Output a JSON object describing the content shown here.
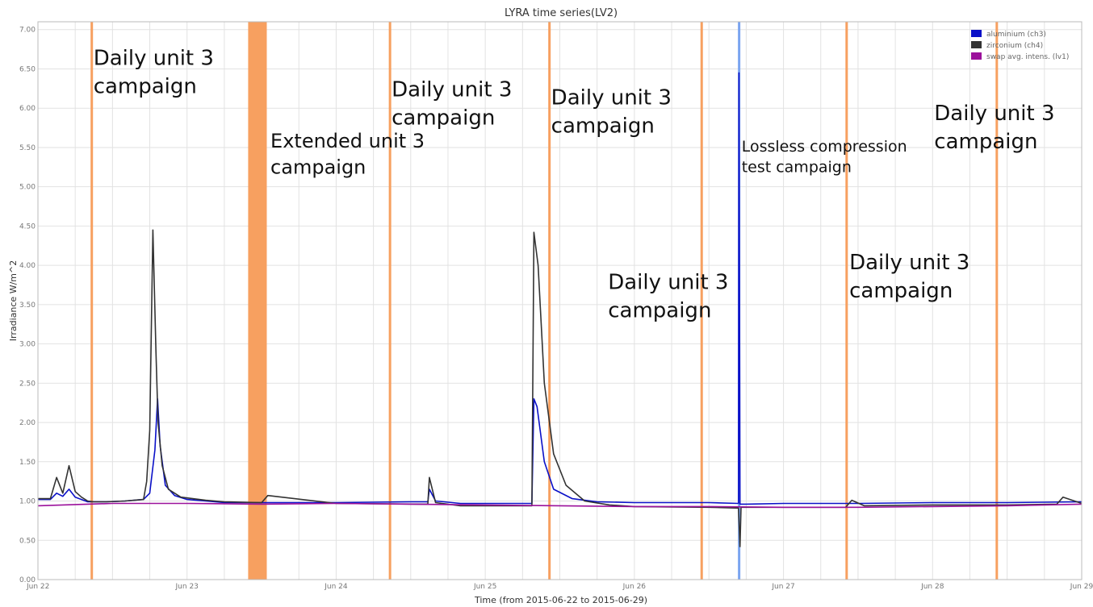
{
  "chart_data": {
    "type": "line",
    "title": "LYRA time series(LV2)",
    "xlabel": "Time (from 2015-06-22 to 2015-06-29)",
    "ylabel": "Irradiance W/m^2",
    "x_domain": [
      "2015-06-22",
      "2015-06-29"
    ],
    "ylim": [
      0,
      7.1
    ],
    "y_ticks": [
      "0.00",
      "0.50",
      "1.00",
      "1.50",
      "2.00",
      "2.50",
      "3.00",
      "3.50",
      "4.00",
      "4.50",
      "5.00",
      "5.50",
      "6.00",
      "6.50",
      "7.00"
    ],
    "x_ticks": [
      {
        "t": "2015-06-22",
        "label": "Jun 22"
      },
      {
        "t": "2015-06-23",
        "label": "Jun 23"
      },
      {
        "t": "2015-06-24",
        "label": "Jun 24"
      },
      {
        "t": "2015-06-25",
        "label": "Jun 25"
      },
      {
        "t": "2015-06-26",
        "label": "Jun 26"
      },
      {
        "t": "2015-06-27",
        "label": "Jun 27"
      },
      {
        "t": "2015-06-28",
        "label": "Jun 28"
      },
      {
        "t": "2015-06-29",
        "label": "Jun 29"
      }
    ],
    "grid": true,
    "legend_position": "top-right",
    "campaign_color": "#f7a060",
    "campaign_bands": [
      {
        "start": "2015-06-22T08:40",
        "end": "2015-06-22T08:40"
      },
      {
        "start": "2015-06-23T09:50",
        "end": "2015-06-23T12:50"
      },
      {
        "start": "2015-06-24T08:40",
        "end": "2015-06-24T08:40"
      },
      {
        "start": "2015-06-25T10:20",
        "end": "2015-06-25T10:20"
      },
      {
        "start": "2015-06-26T10:50",
        "end": "2015-06-26T10:50"
      },
      {
        "start": "2015-06-27T10:10",
        "end": "2015-06-27T10:10"
      },
      {
        "start": "2015-06-28T10:20",
        "end": "2015-06-28T10:20"
      }
    ],
    "highlight_band": {
      "start": "2015-06-26T16:40",
      "end": "2015-06-26T17:00",
      "color": "#7aa4f0"
    },
    "annotations": [
      {
        "lines": [
          "Daily unit 3",
          "campaign"
        ],
        "t": "2015-06-22T08:40",
        "y": 6.55,
        "size": 26
      },
      {
        "lines": [
          "Extended unit 3",
          "campaign"
        ],
        "t": "2015-06-23T13:10",
        "y": 5.5,
        "size": 24
      },
      {
        "lines": [
          "Daily unit 3",
          "campaign"
        ],
        "t": "2015-06-24T08:40",
        "y": 6.15,
        "size": 26
      },
      {
        "lines": [
          "Daily unit 3",
          "campaign"
        ],
        "t": "2015-06-25T10:20",
        "y": 6.05,
        "size": 26
      },
      {
        "lines": [
          "Daily unit 3",
          "campaign"
        ],
        "t": "2015-06-25T19:30",
        "y": 3.7,
        "size": 26
      },
      {
        "lines": [
          "Lossless compression",
          "test campaign"
        ],
        "t": "2015-06-26T17:00",
        "y": 5.45,
        "size": 19
      },
      {
        "lines": [
          "Daily unit 3",
          "campaign"
        ],
        "t": "2015-06-27T10:20",
        "y": 3.95,
        "size": 26
      },
      {
        "lines": [
          "Daily unit 3",
          "campaign"
        ],
        "t": "2015-06-28T00:00",
        "y": 5.85,
        "size": 26
      }
    ],
    "series": [
      {
        "name": "aluminium (ch3)",
        "color": "#0a10c8",
        "x": [
          "2015-06-22T00:00",
          "2015-06-22T02:00",
          "2015-06-22T03:00",
          "2015-06-22T04:00",
          "2015-06-22T05:00",
          "2015-06-22T06:00",
          "2015-06-22T07:00",
          "2015-06-22T08:00",
          "2015-06-22T09:00",
          "2015-06-22T11:00",
          "2015-06-22T14:00",
          "2015-06-22T17:00",
          "2015-06-22T18:00",
          "2015-06-22T18:50",
          "2015-06-22T19:15",
          "2015-06-22T19:40",
          "2015-06-22T20:30",
          "2015-06-22T22:00",
          "2015-06-23T00:00",
          "2015-06-23T03:00",
          "2015-06-23T06:00",
          "2015-06-23T12:00",
          "2015-06-24T00:00",
          "2015-06-24T12:00",
          "2015-06-24T14:45",
          "2015-06-24T15:00",
          "2015-06-24T16:00",
          "2015-06-24T20:00",
          "2015-06-25T04:00",
          "2015-06-25T07:30",
          "2015-06-25T07:50",
          "2015-06-25T08:20",
          "2015-06-25T09:30",
          "2015-06-25T11:00",
          "2015-06-25T14:00",
          "2015-06-25T18:00",
          "2015-06-26T00:00",
          "2015-06-26T12:00",
          "2015-06-26T16:45",
          "2015-06-26T16:50",
          "2015-06-26T17:00",
          "2015-06-26T18:00",
          "2015-06-27T00:00",
          "2015-06-27T12:00",
          "2015-06-28T00:00",
          "2015-06-28T12:00",
          "2015-06-29T00:00"
        ],
        "y": [
          1.02,
          1.02,
          1.1,
          1.06,
          1.15,
          1.05,
          1.02,
          0.99,
          0.99,
          0.99,
          1.0,
          1.02,
          1.1,
          1.65,
          2.3,
          1.7,
          1.2,
          1.07,
          1.02,
          1.0,
          0.98,
          0.98,
          0.98,
          0.99,
          0.99,
          1.15,
          1.0,
          0.97,
          0.97,
          0.97,
          2.3,
          2.2,
          1.5,
          1.15,
          1.03,
          0.99,
          0.98,
          0.98,
          0.97,
          6.45,
          0.96,
          0.96,
          0.97,
          0.97,
          0.98,
          0.98,
          0.99
        ]
      },
      {
        "name": "zirconium (ch4)",
        "color": "#333333",
        "x": [
          "2015-06-22T00:00",
          "2015-06-22T02:00",
          "2015-06-22T03:00",
          "2015-06-22T04:00",
          "2015-06-22T05:00",
          "2015-06-22T06:00",
          "2015-06-22T07:00",
          "2015-06-22T08:00",
          "2015-06-22T09:00",
          "2015-06-22T11:00",
          "2015-06-22T14:00",
          "2015-06-22T17:00",
          "2015-06-22T17:30",
          "2015-06-22T18:00",
          "2015-06-22T18:30",
          "2015-06-22T19:00",
          "2015-06-22T19:20",
          "2015-06-22T20:00",
          "2015-06-22T21:00",
          "2015-06-22T23:00",
          "2015-06-23T03:00",
          "2015-06-23T06:00",
          "2015-06-23T12:00",
          "2015-06-23T13:00",
          "2015-06-24T00:00",
          "2015-06-24T14:00",
          "2015-06-24T14:45",
          "2015-06-24T15:00",
          "2015-06-24T16:00",
          "2015-06-24T20:00",
          "2015-06-25T04:00",
          "2015-06-25T07:30",
          "2015-06-25T07:50",
          "2015-06-25T08:30",
          "2015-06-25T09:30",
          "2015-06-25T11:00",
          "2015-06-25T13:00",
          "2015-06-25T16:00",
          "2015-06-25T20:00",
          "2015-06-26T00:00",
          "2015-06-26T12:00",
          "2015-06-26T16:45",
          "2015-06-26T17:00",
          "2015-06-26T17:10",
          "2015-06-26T18:00",
          "2015-06-27T00:00",
          "2015-06-27T10:00",
          "2015-06-27T11:00",
          "2015-06-27T13:00",
          "2015-06-28T00:00",
          "2015-06-28T12:00",
          "2015-06-28T20:00",
          "2015-06-28T21:00",
          "2015-06-29T00:00"
        ],
        "y": [
          1.03,
          1.03,
          1.3,
          1.1,
          1.45,
          1.12,
          1.05,
          1.0,
          0.99,
          0.99,
          1.0,
          1.02,
          1.25,
          1.9,
          4.45,
          2.9,
          2.0,
          1.45,
          1.15,
          1.05,
          1.01,
          0.99,
          0.98,
          1.07,
          0.97,
          0.96,
          0.96,
          1.3,
          0.98,
          0.94,
          0.94,
          0.94,
          4.42,
          4.0,
          2.5,
          1.6,
          1.2,
          1.0,
          0.95,
          0.93,
          0.92,
          0.91,
          0.42,
          0.92,
          0.92,
          0.92,
          0.92,
          1.01,
          0.94,
          0.95,
          0.95,
          0.96,
          1.05,
          0.97
        ]
      },
      {
        "name": "swap avg. intens. (lv1)",
        "color": "#9b109b",
        "x": [
          "2015-06-22T00:00",
          "2015-06-22T12:00",
          "2015-06-23T00:00",
          "2015-06-23T12:00",
          "2015-06-24T00:00",
          "2015-06-24T12:00",
          "2015-06-25T00:00",
          "2015-06-25T12:00",
          "2015-06-26T00:00",
          "2015-06-26T12:00",
          "2015-06-27T00:00",
          "2015-06-27T12:00",
          "2015-06-28T00:00",
          "2015-06-28T12:00",
          "2015-06-29T00:00"
        ],
        "y": [
          0.94,
          0.97,
          0.97,
          0.96,
          0.97,
          0.96,
          0.95,
          0.94,
          0.93,
          0.93,
          0.92,
          0.92,
          0.93,
          0.94,
          0.96
        ]
      }
    ]
  }
}
